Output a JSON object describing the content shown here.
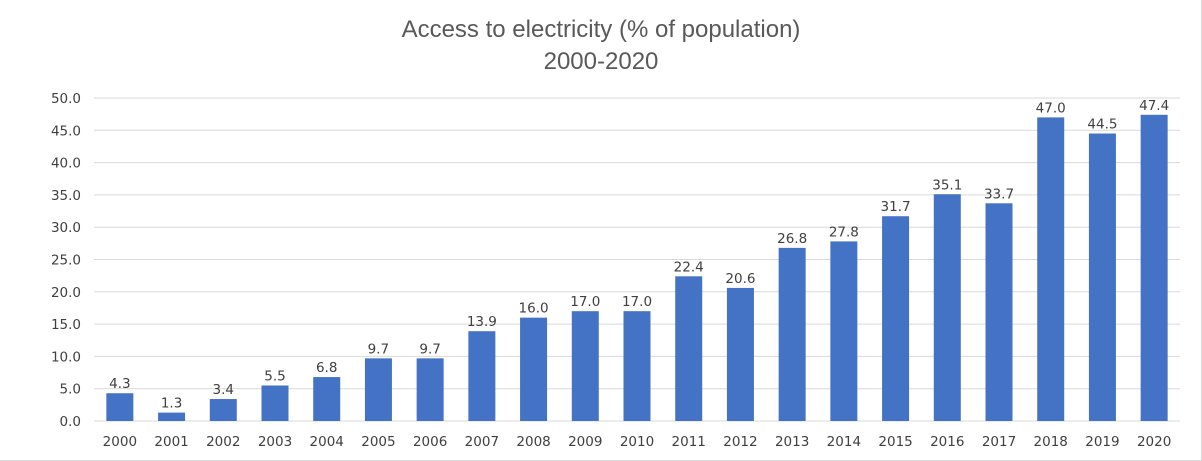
{
  "chart_data": {
    "type": "bar",
    "title": "Access to electricity (% of population)",
    "subtitle": "2000-2020",
    "xlabel": "",
    "ylabel": "",
    "ylim": [
      0,
      50
    ],
    "yticks": [
      "0.0",
      "5.0",
      "10.0",
      "15.0",
      "20.0",
      "25.0",
      "30.0",
      "35.0",
      "40.0",
      "45.0",
      "50.0"
    ],
    "grid": true,
    "legend": "none",
    "categories": [
      "2000",
      "2001",
      "2002",
      "2003",
      "2004",
      "2005",
      "2006",
      "2007",
      "2008",
      "2009",
      "2010",
      "2011",
      "2012",
      "2013",
      "2014",
      "2015",
      "2016",
      "2017",
      "2018",
      "2019",
      "2020"
    ],
    "values": [
      4.3,
      1.3,
      3.4,
      5.5,
      6.8,
      9.7,
      9.7,
      13.9,
      16.0,
      17.0,
      17.0,
      22.4,
      20.6,
      26.8,
      27.8,
      31.7,
      35.1,
      33.7,
      47.0,
      44.5,
      47.4
    ],
    "bar_color": "#4472c4"
  }
}
